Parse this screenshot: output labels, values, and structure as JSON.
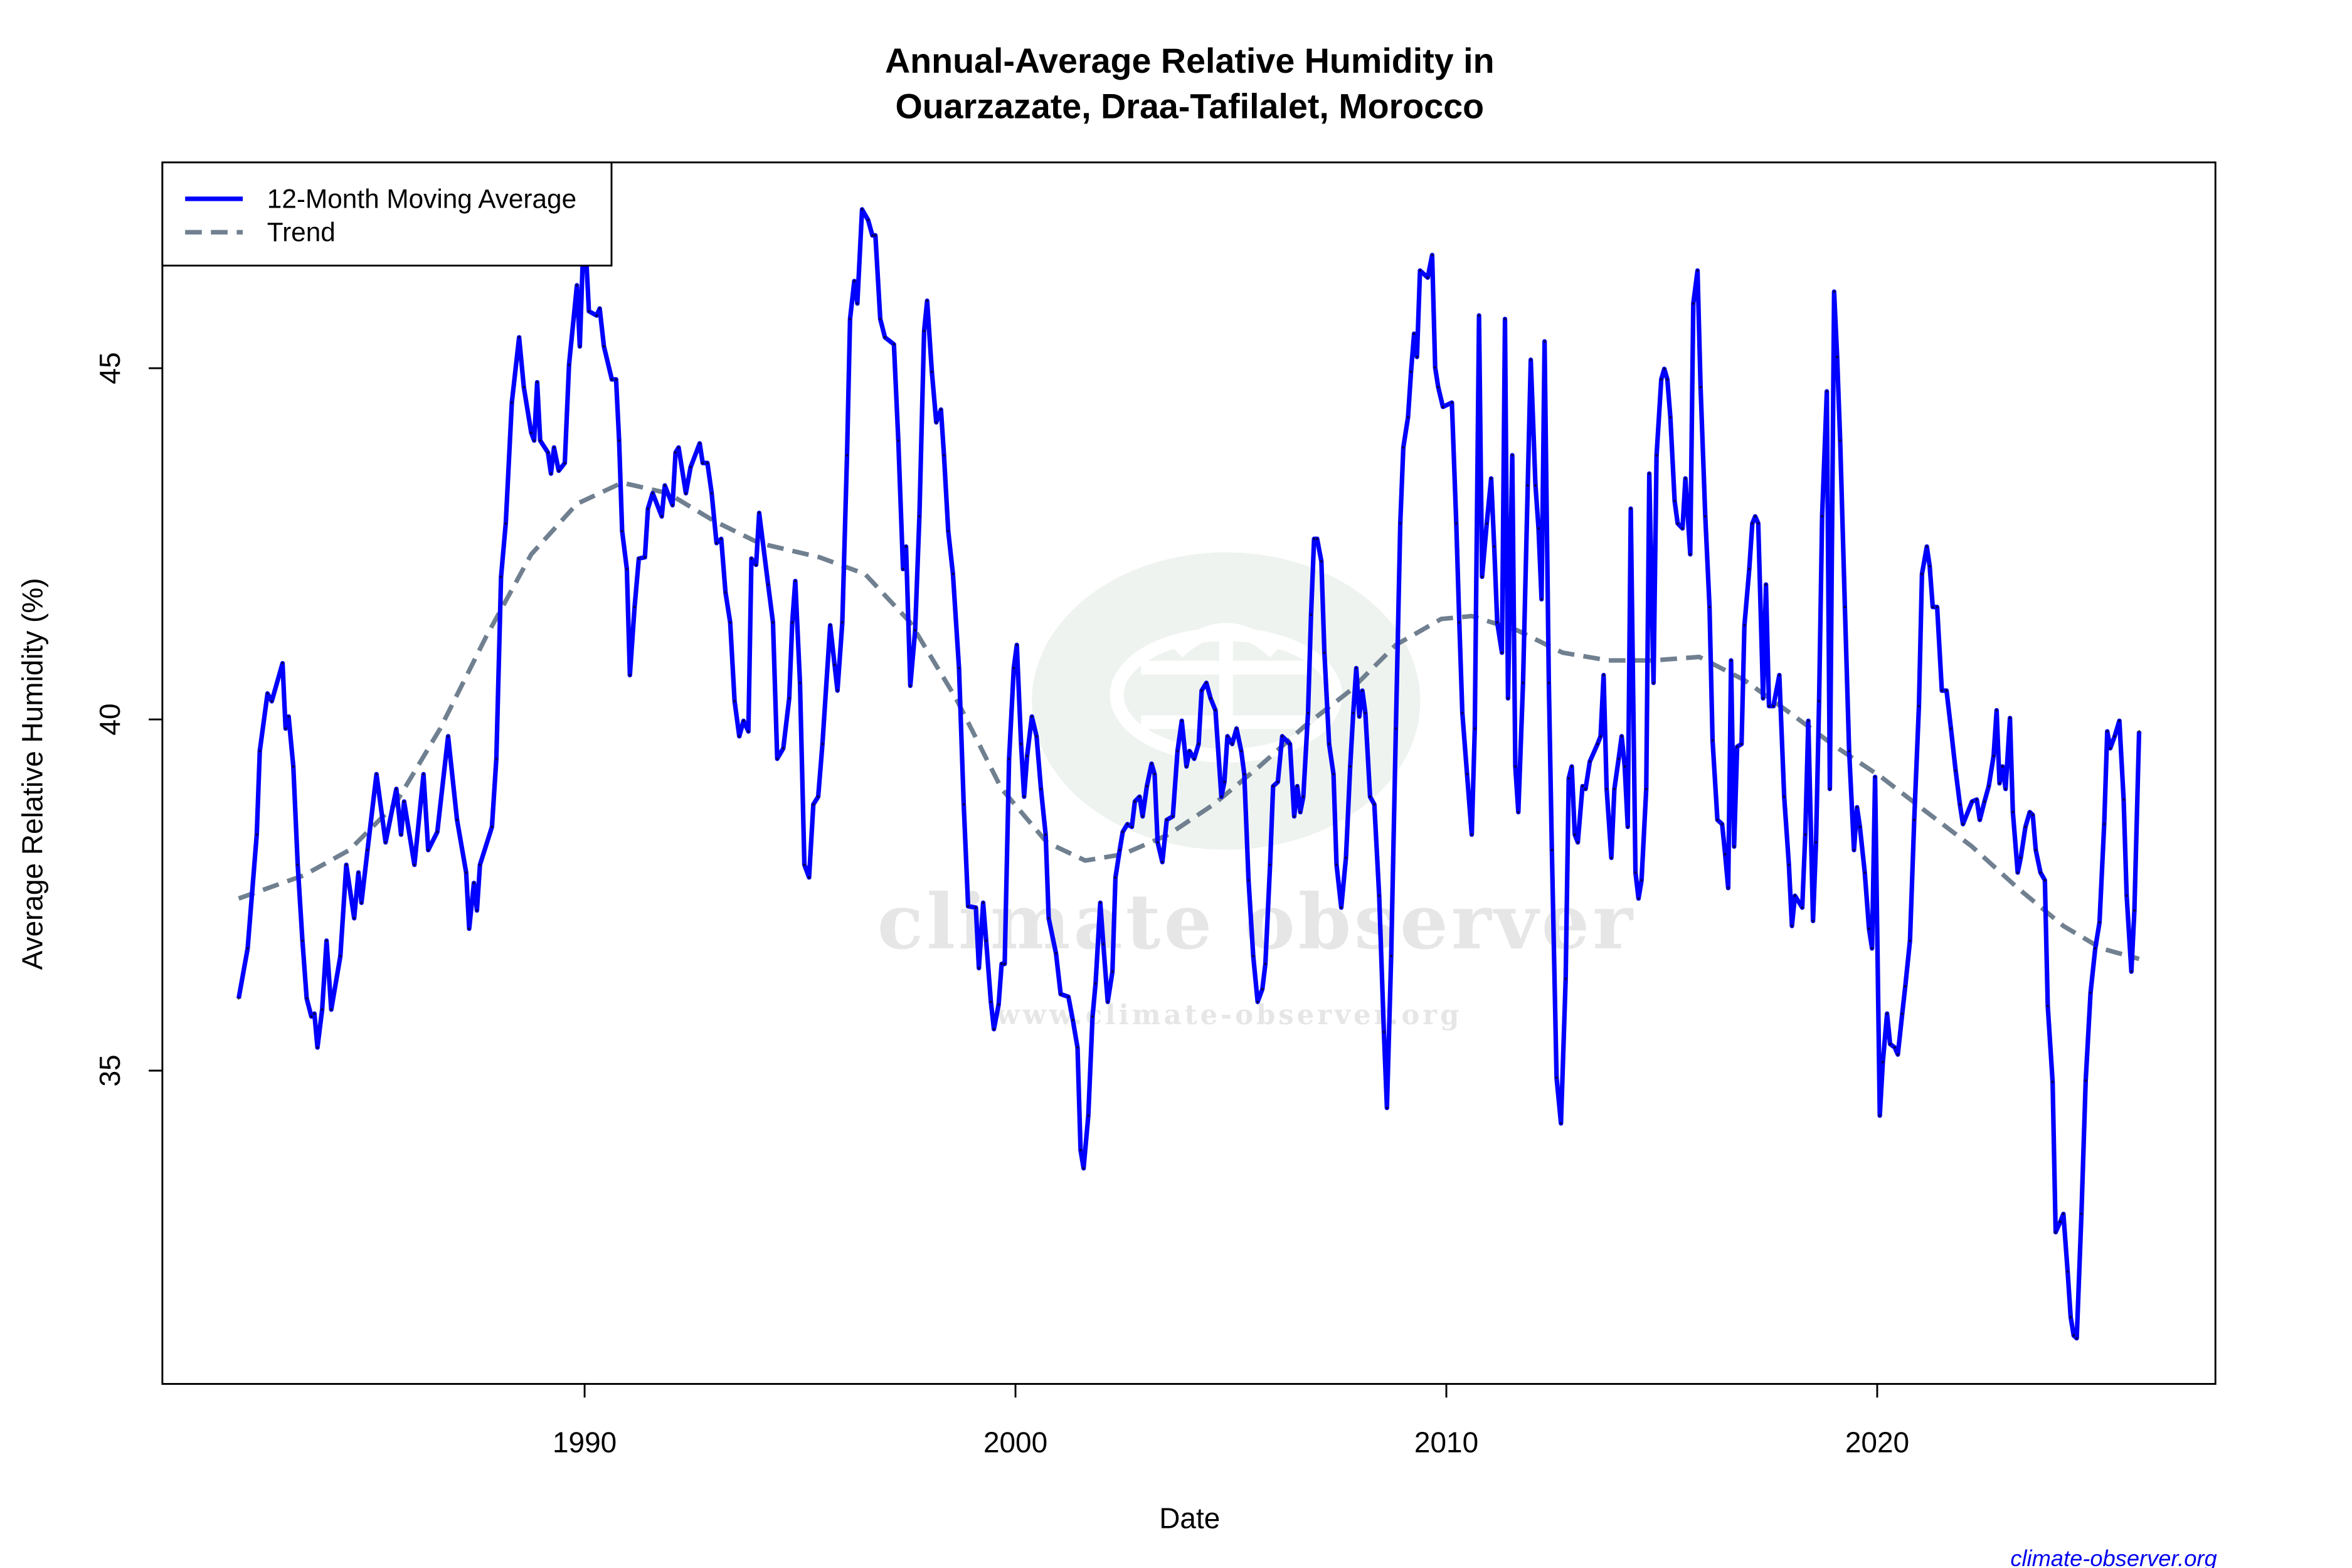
{
  "chart_data": {
    "type": "line",
    "title": [
      "Annual-Average Relative Humidity in",
      "Ouarzazate, Draa-Tafilalet, Morocco"
    ],
    "xlabel": "Date",
    "ylabel": "Average Relative Humidity (%)",
    "xlim": [
      1980.2,
      2027.85
    ],
    "ylim": [
      30.54,
      47.93
    ],
    "x_ticks": [
      1990,
      2000,
      2010,
      2020
    ],
    "y_ticks": [
      35,
      40,
      45
    ],
    "grid": false,
    "legend_position": "top-left",
    "series": [
      {
        "name": "12-Month Moving Average",
        "color": "#0000ff",
        "style": "solid",
        "x": [
          1981.97,
          1982.18,
          1982.39,
          1982.46,
          1982.64,
          1982.74,
          1982.99,
          1983.06,
          1983.13,
          1983.24,
          1983.34,
          1983.45,
          1983.55,
          1983.66,
          1983.73,
          1983.8,
          1983.91,
          1984.01,
          1984.12,
          1984.33,
          1984.47,
          1984.65,
          1984.75,
          1984.82,
          1984.96,
          1985.17,
          1985.38,
          1985.63,
          1985.74,
          1985.81,
          1986.05,
          1986.26,
          1986.37,
          1986.58,
          1986.83,
          1987.04,
          1987.25,
          1987.32,
          1987.43,
          1987.5,
          1987.57,
          1987.85,
          1987.95,
          1988.06,
          1988.17,
          1988.31,
          1988.48,
          1988.59,
          1988.76,
          1988.83,
          1988.9,
          1988.97,
          1989.15,
          1989.22,
          1989.29,
          1989.4,
          1989.54,
          1989.64,
          1989.82,
          1989.89,
          1989.96,
          1990.03,
          1990.1,
          1990.28,
          1990.35,
          1990.45,
          1990.63,
          1990.73,
          1990.8,
          1990.87,
          1990.98,
          1991.05,
          1991.16,
          1991.26,
          1991.4,
          1991.47,
          1991.58,
          1991.79,
          1991.86,
          1992.04,
          1992.11,
          1992.18,
          1992.35,
          1992.46,
          1992.67,
          1992.74,
          1992.85,
          1992.95,
          1993.06,
          1993.17,
          1993.27,
          1993.38,
          1993.48,
          1993.59,
          1993.69,
          1993.8,
          1993.87,
          1993.98,
          1994.05,
          1994.26,
          1994.37,
          1994.47,
          1994.61,
          1994.75,
          1994.82,
          1994.89,
          1995.0,
          1995.1,
          1995.21,
          1995.31,
          1995.42,
          1995.52,
          1995.7,
          1995.8,
          1995.87,
          1995.98,
          1996.09,
          1996.16,
          1996.26,
          1996.33,
          1996.44,
          1996.58,
          1996.68,
          1996.75,
          1996.86,
          1996.97,
          1997.18,
          1997.28,
          1997.39,
          1997.46,
          1997.56,
          1997.67,
          1997.77,
          1997.88,
          1997.95,
          1998.06,
          1998.16,
          1998.27,
          1998.34,
          1998.44,
          1998.55,
          1998.69,
          1998.8,
          1998.9,
          1999.08,
          1999.15,
          1999.25,
          1999.32,
          1999.43,
          1999.5,
          1999.61,
          1999.68,
          1999.75,
          1999.85,
          1999.96,
          2000.03,
          2000.13,
          2000.2,
          2000.27,
          2000.38,
          2000.49,
          2000.59,
          2000.7,
          2000.77,
          2000.94,
          2001.05,
          2001.23,
          2001.33,
          2001.44,
          2001.51,
          2001.58,
          2001.69,
          2001.79,
          2001.86,
          2001.97,
          2002.04,
          2002.14,
          2002.25,
          2002.32,
          2002.42,
          2002.49,
          2002.6,
          2002.7,
          2002.77,
          2002.88,
          2002.95,
          2003.05,
          2003.16,
          2003.23,
          2003.3,
          2003.41,
          2003.51,
          2003.65,
          2003.76,
          2003.86,
          2003.97,
          2004.04,
          2004.15,
          2004.25,
          2004.32,
          2004.43,
          2004.53,
          2004.64,
          2004.78,
          2004.85,
          2004.92,
          2005.03,
          2005.13,
          2005.24,
          2005.31,
          2005.41,
          2005.52,
          2005.62,
          2005.73,
          2005.8,
          2005.91,
          2005.98,
          2006.09,
          2006.19,
          2006.37,
          2006.47,
          2006.54,
          2006.61,
          2006.68,
          2006.79,
          2006.86,
          2006.93,
          2007.0,
          2007.1,
          2007.17,
          2007.28,
          2007.38,
          2007.45,
          2007.56,
          2007.67,
          2007.77,
          2007.84,
          2007.91,
          2007.98,
          2008.05,
          2008.12,
          2008.23,
          2008.33,
          2008.44,
          2008.55,
          2008.62,
          2008.72,
          2008.83,
          2008.93,
          2009.0,
          2009.11,
          2009.18,
          2009.25,
          2009.32,
          2009.39,
          2009.57,
          2009.67,
          2009.74,
          2009.81,
          2009.92,
          2010.13,
          2010.23,
          2010.3,
          2010.37,
          2010.48,
          2010.59,
          2010.66,
          2010.76,
          2010.83,
          2010.94,
          2011.04,
          2011.11,
          2011.18,
          2011.29,
          2011.36,
          2011.43,
          2011.53,
          2011.6,
          2011.67,
          2011.78,
          2011.89,
          2011.96,
          2012.07,
          2012.14,
          2012.21,
          2012.28,
          2012.38,
          2012.45,
          2012.56,
          2012.66,
          2012.77,
          2012.84,
          2012.91,
          2012.98,
          2013.05,
          2013.16,
          2013.23,
          2013.33,
          2013.51,
          2013.58,
          2013.65,
          2013.72,
          2013.83,
          2013.9,
          2014.0,
          2014.07,
          2014.14,
          2014.21,
          2014.28,
          2014.39,
          2014.46,
          2014.53,
          2014.64,
          2014.71,
          2014.81,
          2014.88,
          2014.99,
          2015.06,
          2015.13,
          2015.2,
          2015.3,
          2015.37,
          2015.48,
          2015.55,
          2015.66,
          2015.73,
          2015.83,
          2015.9,
          2016.01,
          2016.11,
          2016.18,
          2016.29,
          2016.4,
          2016.47,
          2016.54,
          2016.61,
          2016.68,
          2016.75,
          2016.85,
          2016.92,
          2017.03,
          2017.1,
          2017.17,
          2017.24,
          2017.35,
          2017.42,
          2017.49,
          2017.59,
          2017.73,
          2017.84,
          2017.95,
          2018.02,
          2018.09,
          2018.26,
          2018.33,
          2018.4,
          2018.51,
          2018.58,
          2018.65,
          2018.72,
          2018.83,
          2018.9,
          2019.0,
          2019.07,
          2019.14,
          2019.25,
          2019.35,
          2019.46,
          2019.53,
          2019.6,
          2019.71,
          2019.81,
          2019.88,
          2019.95,
          2020.06,
          2020.13,
          2020.23,
          2020.3,
          2020.41,
          2020.48,
          2020.58,
          2020.65,
          2020.76,
          2020.86,
          2020.97,
          2021.04,
          2021.15,
          2021.22,
          2021.29,
          2021.39,
          2021.5,
          2021.61,
          2021.71,
          2021.82,
          2021.92,
          2021.99,
          2022.2,
          2022.31,
          2022.38,
          2022.49,
          2022.59,
          2022.7,
          2022.77,
          2022.84,
          2022.91,
          2022.98,
          2023.08,
          2023.15,
          2023.26,
          2023.33,
          2023.44,
          2023.54,
          2023.61,
          2023.68,
          2023.79,
          2023.89,
          2023.96,
          2024.07,
          2024.14,
          2024.25,
          2024.32,
          2024.42,
          2024.49,
          2024.56,
          2024.63,
          2024.74,
          2024.84,
          2024.95,
          2025.06,
          2025.16,
          2025.27,
          2025.34,
          2025.41,
          2025.51,
          2025.62,
          2025.72,
          2025.79,
          2025.9,
          2025.97,
          2026.08
        ],
        "y": [
          36.03,
          36.74,
          38.36,
          39.55,
          40.37,
          40.26,
          40.8,
          39.87,
          40.04,
          39.33,
          37.93,
          36.85,
          36.03,
          35.77,
          35.81,
          35.33,
          35.87,
          36.85,
          35.87,
          36.63,
          37.93,
          37.17,
          37.82,
          37.39,
          38.14,
          39.22,
          38.25,
          39.01,
          38.36,
          38.83,
          37.93,
          39.22,
          38.14,
          38.4,
          39.76,
          38.57,
          37.82,
          37.02,
          37.67,
          37.28,
          37.93,
          38.47,
          39.44,
          42.03,
          42.79,
          44.51,
          45.44,
          44.73,
          44.08,
          43.97,
          44.8,
          43.97,
          43.8,
          43.5,
          43.87,
          43.54,
          43.65,
          45.05,
          46.18,
          45.31,
          46.57,
          46.67,
          45.81,
          45.75,
          45.85,
          45.31,
          44.84,
          44.84,
          43.97,
          42.68,
          42.14,
          40.63,
          41.6,
          42.29,
          42.31,
          43.0,
          43.22,
          42.89,
          43.33,
          43.05,
          43.8,
          43.87,
          43.22,
          43.59,
          43.93,
          43.65,
          43.65,
          43.22,
          42.51,
          42.57,
          41.81,
          41.38,
          40.26,
          39.76,
          39.98,
          39.83,
          42.29,
          42.2,
          42.94,
          41.92,
          41.38,
          39.44,
          39.59,
          40.3,
          41.38,
          41.97,
          40.52,
          37.93,
          37.75,
          38.79,
          38.9,
          39.65,
          41.34,
          40.78,
          40.41,
          41.38,
          43.76,
          45.7,
          46.24,
          45.92,
          47.26,
          47.11,
          46.89,
          46.89,
          45.7,
          45.44,
          45.34,
          43.97,
          42.14,
          42.46,
          40.48,
          41.27,
          42.89,
          45.53,
          45.96,
          44.95,
          44.23,
          44.41,
          43.76,
          42.68,
          42.07,
          40.73,
          38.79,
          37.34,
          37.32,
          36.46,
          37.39,
          36.85,
          35.98,
          35.59,
          35.94,
          36.52,
          36.52,
          39.44,
          40.73,
          41.06,
          39.65,
          38.9,
          39.48,
          40.04,
          39.76,
          39.01,
          38.36,
          37.17,
          36.67,
          36.09,
          36.05,
          35.72,
          35.33,
          33.87,
          33.61,
          34.36,
          35.77,
          36.24,
          37.39,
          36.8,
          35.98,
          36.41,
          37.75,
          38.14,
          38.4,
          38.51,
          38.47,
          38.83,
          38.9,
          38.62,
          39.05,
          39.37,
          39.22,
          38.25,
          37.97,
          38.57,
          38.62,
          39.55,
          39.98,
          39.33,
          39.55,
          39.44,
          39.65,
          40.41,
          40.52,
          40.3,
          40.13,
          38.9,
          39.11,
          39.76,
          39.65,
          39.87,
          39.55,
          39.22,
          37.71,
          36.63,
          35.98,
          36.16,
          36.52,
          37.93,
          39.05,
          39.11,
          39.76,
          39.65,
          38.62,
          39.05,
          38.68,
          38.9,
          40.09,
          41.49,
          42.57,
          42.57,
          42.25,
          40.95,
          39.65,
          39.22,
          37.93,
          37.32,
          38.03,
          39.33,
          40.09,
          40.73,
          40.04,
          40.41,
          40.09,
          38.9,
          38.79,
          37.49,
          35.55,
          34.47,
          36.63,
          39.87,
          42.79,
          43.87,
          44.3,
          44.95,
          45.49,
          45.16,
          46.39,
          46.29,
          46.61,
          45.01,
          44.73,
          44.45,
          44.51,
          42.79,
          41.38,
          40.09,
          39.22,
          38.36,
          39.87,
          45.75,
          42.03,
          42.79,
          43.43,
          42.46,
          41.38,
          40.95,
          45.7,
          40.3,
          43.76,
          39.33,
          38.68,
          40.52,
          43.33,
          45.12,
          43.33,
          42.72,
          41.71,
          45.38,
          40.52,
          38.14,
          34.9,
          34.25,
          36.31,
          39.16,
          39.33,
          38.36,
          38.25,
          39.05,
          39.01,
          39.4,
          39.65,
          39.76,
          40.63,
          39.01,
          38.03,
          39.01,
          39.44,
          39.76,
          39.33,
          38.47,
          43.0,
          37.82,
          37.45,
          37.71,
          39.01,
          43.5,
          40.52,
          43.76,
          44.84,
          44.99,
          44.84,
          44.3,
          43.11,
          42.79,
          42.72,
          43.43,
          42.35,
          45.92,
          46.39,
          44.73,
          42.89,
          41.6,
          39.7,
          38.57,
          38.51,
          38.08,
          37.6,
          40.84,
          38.19,
          39.61,
          39.65,
          41.34,
          42.14,
          42.79,
          42.89,
          42.79,
          40.3,
          41.92,
          40.19,
          40.19,
          40.63,
          38.9,
          37.93,
          37.06,
          37.49,
          37.32,
          38.36,
          39.98,
          37.13,
          38.25,
          40.26,
          42.89,
          44.67,
          39.01,
          46.09,
          45.16,
          43.97,
          41.6,
          39.55,
          38.14,
          38.75,
          38.47,
          37.82,
          37.02,
          36.74,
          39.18,
          34.36,
          35.12,
          35.81,
          35.38,
          35.33,
          35.23,
          35.81,
          36.2,
          36.85,
          38.57,
          40.19,
          42.07,
          42.46,
          42.18,
          41.6,
          41.6,
          40.41,
          40.41,
          39.87,
          39.27,
          38.79,
          38.51,
          38.83,
          38.86,
          38.57,
          38.83,
          39.05,
          39.48,
          40.13,
          39.09,
          39.33,
          39.01,
          40.02,
          38.68,
          37.82,
          38.03,
          38.47,
          38.68,
          38.64,
          38.14,
          37.82,
          37.71,
          35.92,
          34.84,
          32.7,
          32.85,
          32.96,
          32.14,
          31.49,
          31.23,
          31.19,
          32.96,
          34.86,
          36.11,
          36.74,
          37.11,
          38.51,
          39.83,
          39.59,
          39.76,
          39.98,
          38.86,
          37.49,
          36.41,
          37.28,
          39.83
        ]
      },
      {
        "name": "Trend",
        "color": "#708090",
        "style": "dashed",
        "x": [
          1981.97,
          1983.48,
          1984.54,
          1985.6,
          1986.65,
          1987.71,
          1988.76,
          1989.82,
          1990.87,
          1991.93,
          1992.99,
          1994.05,
          1995.45,
          1996.51,
          1997.56,
          1998.62,
          1999.68,
          2000.73,
          2001.62,
          2002.49,
          2003.55,
          2004.6,
          2005.66,
          2006.72,
          2007.77,
          2008.83,
          2009.88,
          2010.59,
          2011.64,
          2012.7,
          2013.76,
          2014.81,
          2015.87,
          2016.92,
          2017.98,
          2019.04,
          2020.09,
          2021.15,
          2022.2,
          2023.26,
          2024.32,
          2025.2,
          2026.08
        ],
        "y": [
          37.45,
          37.78,
          38.14,
          38.79,
          39.87,
          41.17,
          42.35,
          43.07,
          43.37,
          43.22,
          42.83,
          42.51,
          42.31,
          42.07,
          41.38,
          40.3,
          39.01,
          38.25,
          37.99,
          38.08,
          38.36,
          38.79,
          39.33,
          39.91,
          40.41,
          41.06,
          41.43,
          41.47,
          41.27,
          40.95,
          40.84,
          40.84,
          40.89,
          40.56,
          40.09,
          39.61,
          39.18,
          38.68,
          38.19,
          37.6,
          37.06,
          36.74,
          36.59
        ]
      }
    ]
  },
  "watermark": {
    "logo_text": "climate observer",
    "logo_url": "www.climate-observer.org",
    "colors": {
      "ellipse": "#eef3ef",
      "text": "#e6e6e6"
    }
  },
  "credit": "climate-observer.org"
}
